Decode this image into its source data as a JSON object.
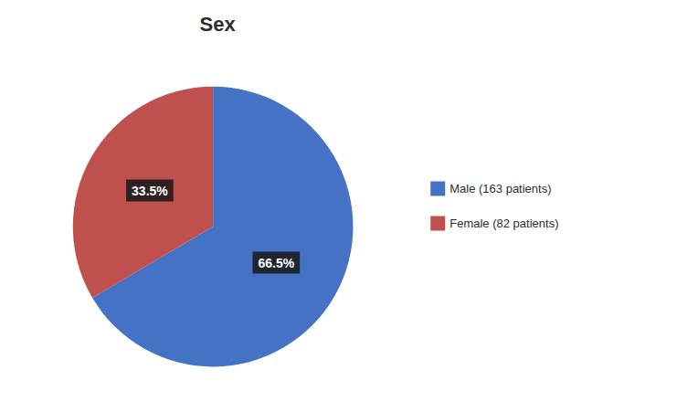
{
  "chart_data": {
    "type": "pie",
    "title": "Sex",
    "categories": [
      "Male (163 patients)",
      "Female (82 patients)"
    ],
    "values": [
      66.5,
      33.5
    ],
    "value_labels": [
      "66.5%",
      "33.5%"
    ],
    "colors": [
      "#4472C4",
      "#C0504D"
    ],
    "data_labels": true,
    "legend": "right"
  }
}
